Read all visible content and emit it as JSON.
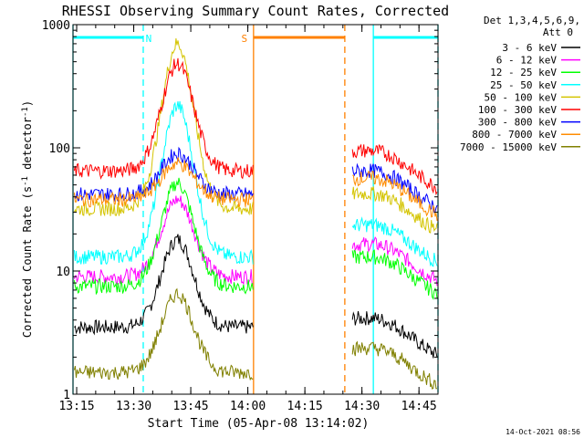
{
  "chart_data": {
    "type": "line",
    "title": "RHESSI Observing Summary Count Rates, Corrected",
    "xlabel": "Start Time (05-Apr-08 13:14:02)",
    "ylabel": "Corrected Count Rate (s⁻¹ detector⁻¹)",
    "ylabel_main": "Corrected Count Rate (s",
    "ylabel_sup1": "-1",
    "ylabel_mid": " detector",
    "ylabel_sup2": "-1",
    "ylabel_end": ")",
    "y_scale": "log",
    "ylim": [
      1,
      1000
    ],
    "xlim": [
      "13:14:02",
      "14:50:00"
    ],
    "x_ticks": [
      "13:15",
      "13:30",
      "13:45",
      "14:00",
      "14:15",
      "14:30",
      "14:45"
    ],
    "y_ticks": [
      "1",
      "10",
      "100",
      "1000"
    ],
    "footer_date": "14-Oct-2021 08:56",
    "legend": {
      "header_line1": "Det 1,3,4,5,6,9,",
      "header_line2": "Att 0",
      "placement": "right"
    },
    "series": [
      {
        "name": "3 - 6 keV",
        "color": "#000000",
        "levels": [
          3.5,
          3.5,
          18,
          3.5
        ]
      },
      {
        "name": "6 - 12 keV",
        "color": "#ff00ff",
        "levels": [
          9,
          9,
          38,
          14
        ]
      },
      {
        "name": "12 - 25 keV",
        "color": "#00ff00",
        "levels": [
          7.5,
          7.5,
          52,
          11
        ]
      },
      {
        "name": "25 - 50 keV",
        "color": "#00ffff",
        "levels": [
          13,
          13,
          220,
          20
        ]
      },
      {
        "name": "50 - 100 keV",
        "color": "#d4c400",
        "levels": [
          32,
          32,
          700,
          36
        ]
      },
      {
        "name": "100 - 300 keV",
        "color": "#ff0000",
        "levels": [
          65,
          65,
          480,
          80
        ]
      },
      {
        "name": "300 - 800 keV",
        "color": "#0000ff",
        "levels": [
          42,
          42,
          90,
          55
        ]
      },
      {
        "name": "800 - 7000 keV",
        "color": "#ff8c00",
        "levels": [
          38,
          38,
          75,
          48
        ]
      },
      {
        "name": "7000 - 15000 keV",
        "color": "#808000",
        "levels": [
          1.5,
          1.5,
          6.5,
          2
        ]
      }
    ],
    "annotations": [
      {
        "label": "N",
        "color": "#00ffff",
        "from": "13:14:02",
        "to": "13:32:30",
        "kind": "night"
      },
      {
        "label": "",
        "color": "#00ffff",
        "from": "14:33:00",
        "to": "14:50:00",
        "kind": "night"
      },
      {
        "label": "S",
        "color": "#ff8000",
        "from": "14:01:30",
        "to": "14:25:30",
        "kind": "saa"
      }
    ],
    "data_gap": [
      "14:01:30",
      "14:27:00"
    ]
  }
}
